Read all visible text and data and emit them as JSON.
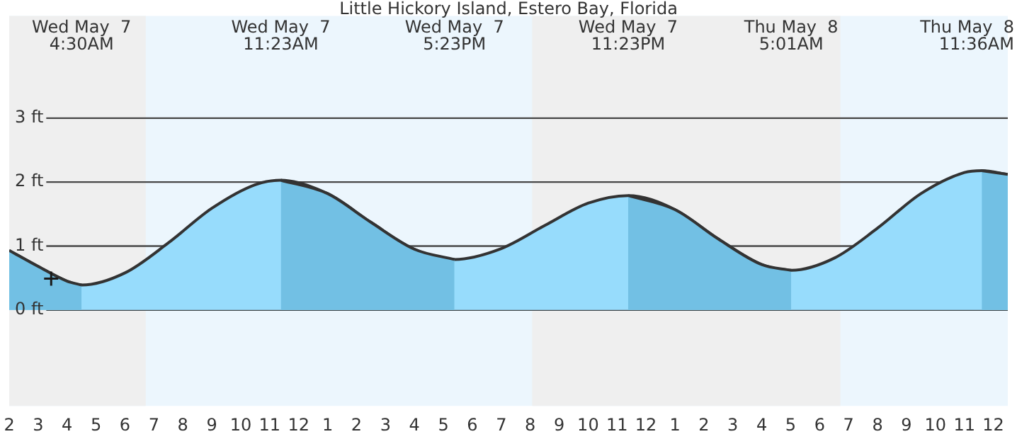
{
  "chart_data": {
    "type": "area",
    "title": "Little Hickory Island, Estero Bay, Florida",
    "x": [
      "--05-07T02:00",
      "--05-07T03:00",
      "--05-07T04:00",
      "--05-07T04:30",
      "--05-07T06:00",
      "--05-07T07:30",
      "--05-07T09:00",
      "--05-07T10:30",
      "--05-07T11:23",
      "--05-07T13:00",
      "--05-07T14:30",
      "--05-07T16:00",
      "--05-07T17:23",
      "--05-07T19:00",
      "--05-07T20:30",
      "--05-07T22:00",
      "--05-07T23:23",
      "--05-08T01:00",
      "--05-08T02:30",
      "--05-08T04:00",
      "--05-08T05:01",
      "--05-08T06:30",
      "--05-08T08:00",
      "--05-08T09:30",
      "--05-08T11:00",
      "--05-08T11:36",
      "--05-08T12:30"
    ],
    "series": [
      {
        "type": "scatter",
        "marker": "cross",
        "color": "#1a1a1a",
        "x": [
          "--05-07T03:27"
        ],
        "values": [
          0.49
        ]
      },
      {
        "color": "#72c0e4",
        "values": [
          0.93,
          0.68,
          0.45,
          0.39,
          null,
          null,
          null,
          null,
          2.03,
          1.82,
          1.37,
          0.95,
          0.79,
          null,
          null,
          null,
          1.79,
          1.57,
          1.11,
          0.71,
          0.62,
          null,
          null,
          null,
          null,
          2.18,
          2.12
        ]
      },
      {
        "color": "#97dcfc",
        "values": [
          0.93,
          0.68,
          0.45,
          0.39,
          0.58,
          1.05,
          1.59,
          1.96,
          2.03,
          1.82,
          1.37,
          0.95,
          0.79,
          0.96,
          1.32,
          1.67,
          1.79,
          1.57,
          1.11,
          0.71,
          0.62,
          0.81,
          1.28,
          1.82,
          2.15,
          2.18,
          2.12
        ]
      }
    ],
    "annotations": [
      "Wed May  7\n4:30AM",
      "Wed May  7\n11:23AM",
      "Wed May  7\n5:23PM",
      "Wed May  7\n11:23PM",
      "Thu May  8\n5:01AM",
      "Thu May  8\n11:36AM"
    ],
    "bands": [
      {
        "axis": "x",
        "from": "--05-07T02:00",
        "to": "--05-07T06:43",
        "color": "#efefef"
      },
      {
        "axis": "x",
        "from": "--05-07T20:04",
        "to": "--05-08T06:43",
        "color": "#efefef"
      }
    ],
    "xlim": [
      "--05-07T02:00",
      "--05-08T12:30"
    ],
    "xticks": [
      {
        "value": "--05-07T02:00",
        "label": "2"
      },
      {
        "value": "--05-07T03:00",
        "label": "3"
      },
      {
        "value": "--05-07T04:00",
        "label": "4"
      },
      {
        "value": "--05-07T05:00",
        "label": "5"
      },
      {
        "value": "--05-07T06:00",
        "label": "6"
      },
      {
        "value": "--05-07T07:00",
        "label": "7"
      },
      {
        "value": "--05-07T08:00",
        "label": "8"
      },
      {
        "value": "--05-07T09:00",
        "label": "9"
      },
      {
        "value": "--05-07T10:00",
        "label": "10"
      },
      {
        "value": "--05-07T11:00",
        "label": "11"
      },
      {
        "value": "--05-07T12:00",
        "label": "12"
      },
      {
        "value": "--05-07T13:00",
        "label": "1"
      },
      {
        "value": "--05-07T14:00",
        "label": "2"
      },
      {
        "value": "--05-07T15:00",
        "label": "3"
      },
      {
        "value": "--05-07T16:00",
        "label": "4"
      },
      {
        "value": "--05-07T17:00",
        "label": "5"
      },
      {
        "value": "--05-07T18:00",
        "label": "6"
      },
      {
        "value": "--05-07T19:00",
        "label": "7"
      },
      {
        "value": "--05-07T20:00",
        "label": "8"
      },
      {
        "value": "--05-07T21:00",
        "label": "9"
      },
      {
        "value": "--05-07T22:00",
        "label": "10"
      },
      {
        "value": "--05-07T23:00",
        "label": "11"
      },
      {
        "value": "--05-08T00:00",
        "label": "12"
      },
      {
        "value": "--05-08T01:00",
        "label": "1"
      },
      {
        "value": "--05-08T02:00",
        "label": "2"
      },
      {
        "value": "--05-08T03:00",
        "label": "3"
      },
      {
        "value": "--05-08T04:00",
        "label": "4"
      },
      {
        "value": "--05-08T05:00",
        "label": "5"
      },
      {
        "value": "--05-08T06:00",
        "label": "6"
      },
      {
        "value": "--05-08T07:00",
        "label": "7"
      },
      {
        "value": "--05-08T08:00",
        "label": "8"
      },
      {
        "value": "--05-08T09:00",
        "label": "9"
      },
      {
        "value": "--05-08T10:00",
        "label": "10"
      },
      {
        "value": "--05-08T11:00",
        "label": "11"
      },
      {
        "value": "--05-08T12:00",
        "label": "12"
      }
    ],
    "ylim": [
      -1.5,
      4.6
    ],
    "yticks": [
      {
        "value": 0,
        "label": "0 ft"
      },
      {
        "value": 1,
        "label": "1 ft"
      },
      {
        "value": 2,
        "label": "2 ft"
      },
      {
        "value": 3,
        "label": "3 ft"
      }
    ],
    "grid": "y",
    "legend": false
  }
}
